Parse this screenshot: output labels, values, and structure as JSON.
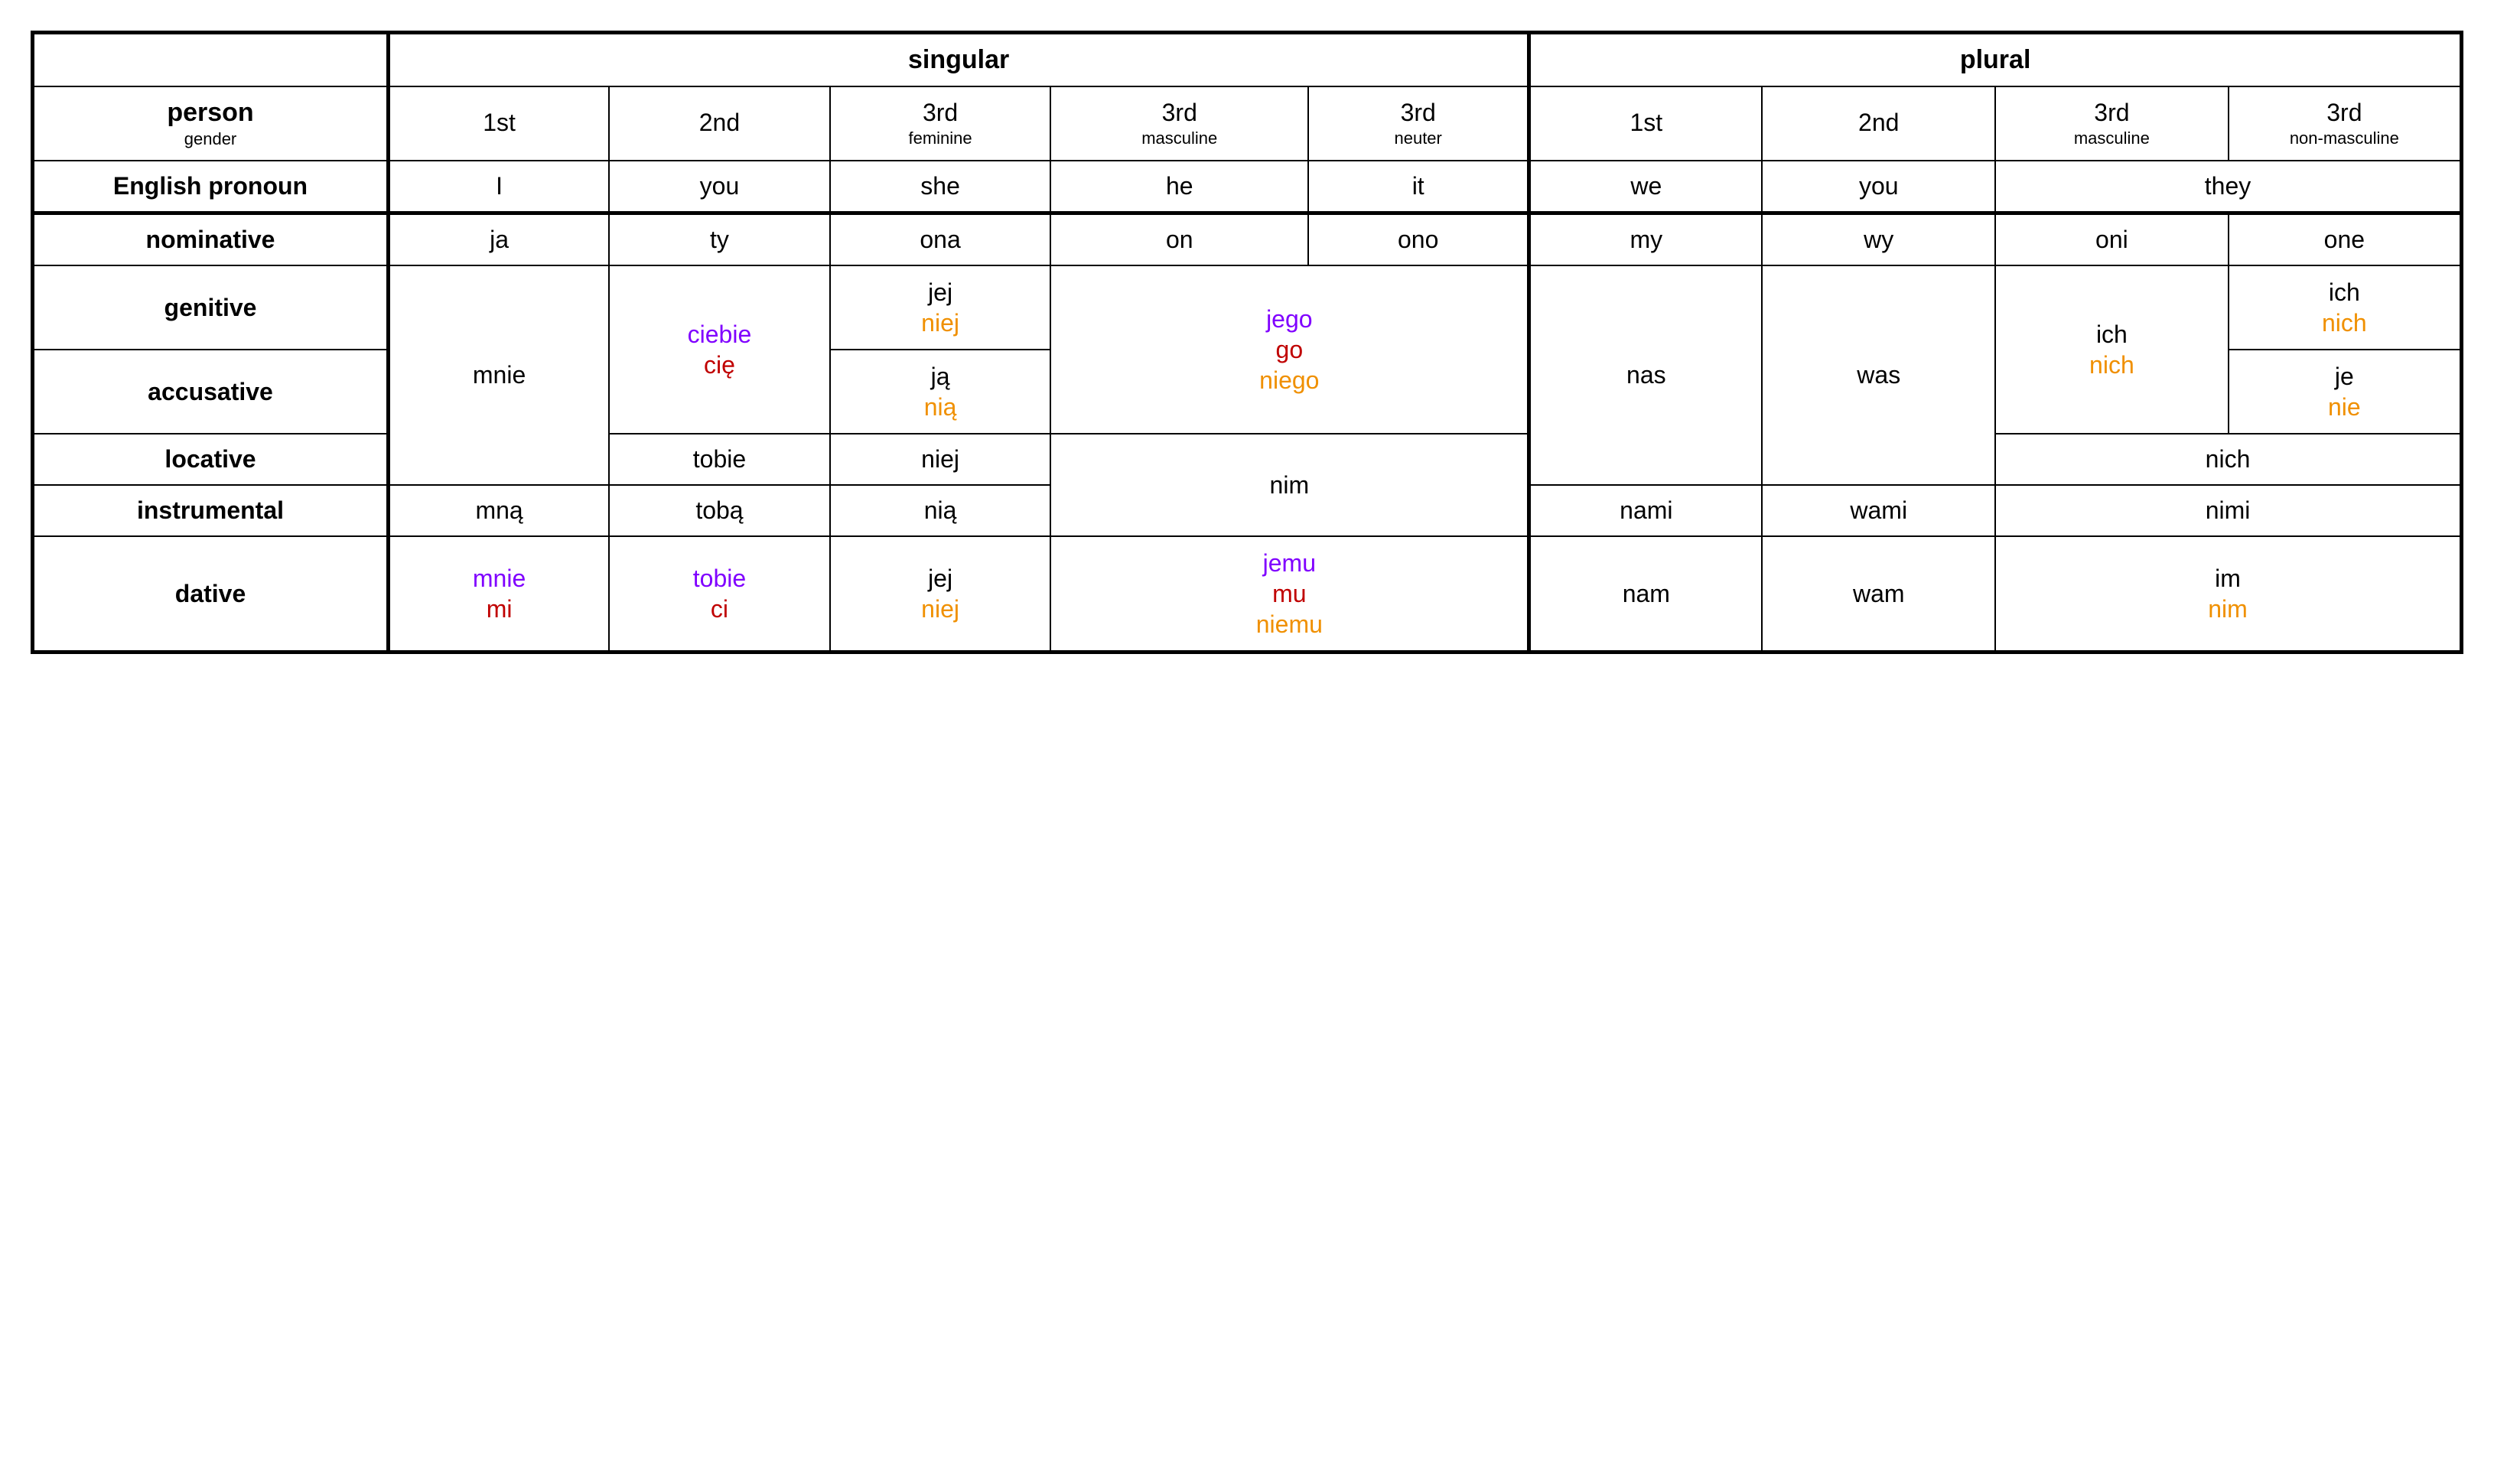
{
  "colors": {
    "black": "#000000",
    "purple": "#8000ff",
    "red": "#c00000",
    "orange": "#f09000",
    "border": "#000000",
    "bg": "#ffffff"
  },
  "header": {
    "singular": "singular",
    "plural": "plural",
    "person": "person",
    "gender": "gender",
    "english_pronoun": "English pronoun",
    "cols_singular": [
      {
        "top": "1st",
        "sub": ""
      },
      {
        "top": "2nd",
        "sub": ""
      },
      {
        "top": "3rd",
        "sub": "feminine"
      },
      {
        "top": "3rd",
        "sub": "masculine"
      },
      {
        "top": "3rd",
        "sub": "neuter"
      }
    ],
    "cols_plural": [
      {
        "top": "1st",
        "sub": ""
      },
      {
        "top": "2nd",
        "sub": ""
      },
      {
        "top": "3rd",
        "sub": "masculine"
      },
      {
        "top": "3rd",
        "sub": "non-masculine"
      }
    ],
    "english": {
      "s1": "I",
      "s2": "you",
      "s3f": "she",
      "s3m": "he",
      "s3n": "it",
      "p1": "we",
      "p2": "you",
      "p3": "they"
    }
  },
  "cases": {
    "nominative": "nominative",
    "genitive": "genitive",
    "accusative": "accusative",
    "locative": "locative",
    "instrumental": "instrumental",
    "dative": "dative"
  },
  "cells": {
    "nom": {
      "s1": "ja",
      "s2": "ty",
      "s3f": "ona",
      "s3m": "on",
      "s3n": "ono",
      "p1": "my",
      "p2": "wy",
      "p3m": "oni",
      "p3n": "one"
    },
    "gen_acc_s1": "mnie",
    "gen_acc_s2": {
      "a": "ciebie",
      "b": "cię"
    },
    "gen_s3f": {
      "a": "jej",
      "b": "niej"
    },
    "acc_s3f": {
      "a": "ją",
      "b": "nią"
    },
    "gen_acc_s3mn": {
      "a": "jego",
      "b": "go",
      "c": "niego"
    },
    "gen_acc_p1": "nas",
    "gen_acc_p2": "was",
    "gen_acc_p3m": {
      "a": "ich",
      "b": "nich"
    },
    "gen_p3n": {
      "a": "ich",
      "b": "nich"
    },
    "acc_p3n": {
      "a": "je",
      "b": "nie"
    },
    "loc_s2": "tobie",
    "loc_s3f": "niej",
    "loc_instr_s3mn": "nim",
    "loc_p3": "nich",
    "instr_s1": "mną",
    "instr_s2": "tobą",
    "instr_s3f": "nią",
    "instr_p1": "nami",
    "instr_p2": "wami",
    "instr_p3": "nimi",
    "dat_s1": {
      "a": "mnie",
      "b": "mi"
    },
    "dat_s2": {
      "a": "tobie",
      "b": "ci"
    },
    "dat_s3f": {
      "a": "jej",
      "b": "niej"
    },
    "dat_s3mn": {
      "a": "jemu",
      "b": "mu",
      "c": "niemu"
    },
    "dat_p1": "nam",
    "dat_p2": "wam",
    "dat_p3": {
      "a": "im",
      "b": "nim"
    }
  }
}
